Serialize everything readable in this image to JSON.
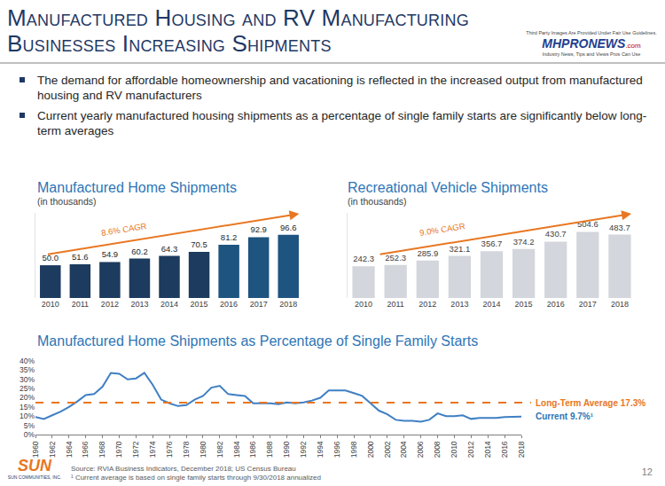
{
  "slide": {
    "title_lines": [
      "Manufactured Housing and RV Manufacturing",
      "Businesses Increasing Shipments"
    ],
    "bullets": [
      "The demand for affordable homeownership and vacationing is reflected in the increased output from manufactured housing and RV manufacturers",
      "Current yearly manufactured housing shipments as a percentage of single family starts are significantly below long-term averages"
    ],
    "source": "Source: RVIA Business Indicators, December 2018; US Census Bureau",
    "footnote": "¹ Current average is based on single family starts through 9/30/2018 annualized",
    "page_number": "12",
    "logo": {
      "name": "SUN",
      "subtitle": "SUN COMMUNITIES, INC."
    },
    "watermark": {
      "notice": "Third Party Images Are Provided Under Fair Use Guidelines.",
      "brand": "MHPRONEWS",
      "domain": ".com",
      "tagline": "Industry News, Tips and Views Pros Can Use"
    }
  },
  "chart_data": [
    {
      "type": "bar",
      "title": "Manufactured Home Shipments",
      "subtitle": "(in thousands)",
      "categories": [
        "2010",
        "2011",
        "2012",
        "2013",
        "2014",
        "2015",
        "2016",
        "2017",
        "2018"
      ],
      "values": [
        50.0,
        51.6,
        54.9,
        60.2,
        64.3,
        70.5,
        81.2,
        92.9,
        96.6
      ],
      "value_labels": [
        "50.0",
        "51.6",
        "54.9",
        "60.2",
        "64.3",
        "70.5",
        "81.2",
        "92.9",
        "96.6"
      ],
      "colors": [
        "#1c3b5e",
        "#1c3b5e",
        "#1c3b5e",
        "#1c3b5e",
        "#1c3b5e",
        "#1c3b5e",
        "#1d5480",
        "#1d5480",
        "#1d5480"
      ],
      "data_labels": true,
      "tick_labels": "x",
      "grid": false,
      "ylim": [
        0,
        130
      ],
      "annotations": [
        {
          "text": "8.6% CAGR",
          "color": "#e87722"
        }
      ]
    },
    {
      "type": "bar",
      "title": "Recreational Vehicle Shipments",
      "subtitle": "(in thousands)",
      "categories": [
        "2010",
        "2011",
        "2012",
        "2013",
        "2014",
        "2015",
        "2016",
        "2017",
        "2018"
      ],
      "values": [
        242.3,
        252.3,
        285.9,
        321.1,
        356.7,
        374.2,
        430.7,
        504.6,
        483.7
      ],
      "color": "#d3d6dc",
      "data_labels": true,
      "tick_labels": "x",
      "grid": false,
      "ylim": [
        0,
        650
      ],
      "annotations": [
        {
          "text": "9.0% CAGR",
          "color": "#e87722"
        }
      ]
    },
    {
      "type": "line",
      "title": "Manufactured Home Shipments as Percentage of Single Family Starts",
      "x": [
        1960,
        1961,
        1962,
        1963,
        1964,
        1965,
        1966,
        1967,
        1968,
        1969,
        1970,
        1971,
        1972,
        1973,
        1974,
        1975,
        1976,
        1977,
        1978,
        1979,
        1980,
        1981,
        1982,
        1983,
        1984,
        1985,
        1986,
        1987,
        1988,
        1989,
        1990,
        1991,
        1992,
        1993,
        1994,
        1995,
        1996,
        1997,
        1998,
        1999,
        2000,
        2001,
        2002,
        2003,
        2004,
        2005,
        2006,
        2007,
        2008,
        2009,
        2010,
        2011,
        2012,
        2013,
        2014,
        2015,
        2016,
        2017,
        2018
      ],
      "values": [
        9.5,
        8.5,
        10.5,
        12.5,
        15,
        18,
        21.5,
        22,
        26,
        33.5,
        33,
        30,
        30.5,
        33.5,
        27,
        19,
        17,
        15.5,
        16,
        19,
        21,
        25.5,
        26.5,
        22,
        21.5,
        21,
        17,
        17,
        17,
        16.5,
        17.5,
        17,
        17.5,
        18.5,
        20,
        24,
        24,
        24,
        22.5,
        21,
        17,
        13,
        11,
        8,
        7.5,
        7.5,
        7,
        8,
        11.5,
        10,
        10,
        10.5,
        8.5,
        9,
        9,
        9,
        9.5,
        9.7,
        9.7
      ],
      "color": "#3f7fc4",
      "grid": false,
      "xlim": [
        1960,
        2018
      ],
      "xticks": [
        1960,
        1962,
        1964,
        1966,
        1968,
        1970,
        1972,
        1974,
        1976,
        1978,
        1980,
        1982,
        1984,
        1986,
        1988,
        1990,
        1992,
        1994,
        1996,
        1998,
        2000,
        2002,
        2004,
        2006,
        2008,
        2010,
        2012,
        2014,
        2016,
        2018
      ],
      "ylim": [
        0,
        40
      ],
      "yticks": [
        {
          "value": 0,
          "label": "0%"
        },
        {
          "value": 5,
          "label": "5%"
        },
        {
          "value": 10,
          "label": "10%"
        },
        {
          "value": 15,
          "label": "15%"
        },
        {
          "value": 20,
          "label": "20%"
        },
        {
          "value": 25,
          "label": "25%"
        },
        {
          "value": 30,
          "label": "30%"
        },
        {
          "value": 35,
          "label": "35%"
        },
        {
          "value": 40,
          "label": "40%"
        }
      ],
      "annotations": [
        {
          "text": "Long-Term Average 17.3%",
          "value": 17.3,
          "color": "#e87722",
          "line_style": "dashed"
        },
        {
          "text": "Current 9.7%¹",
          "value": 9.7,
          "color": "#2e75b6"
        }
      ]
    }
  ]
}
